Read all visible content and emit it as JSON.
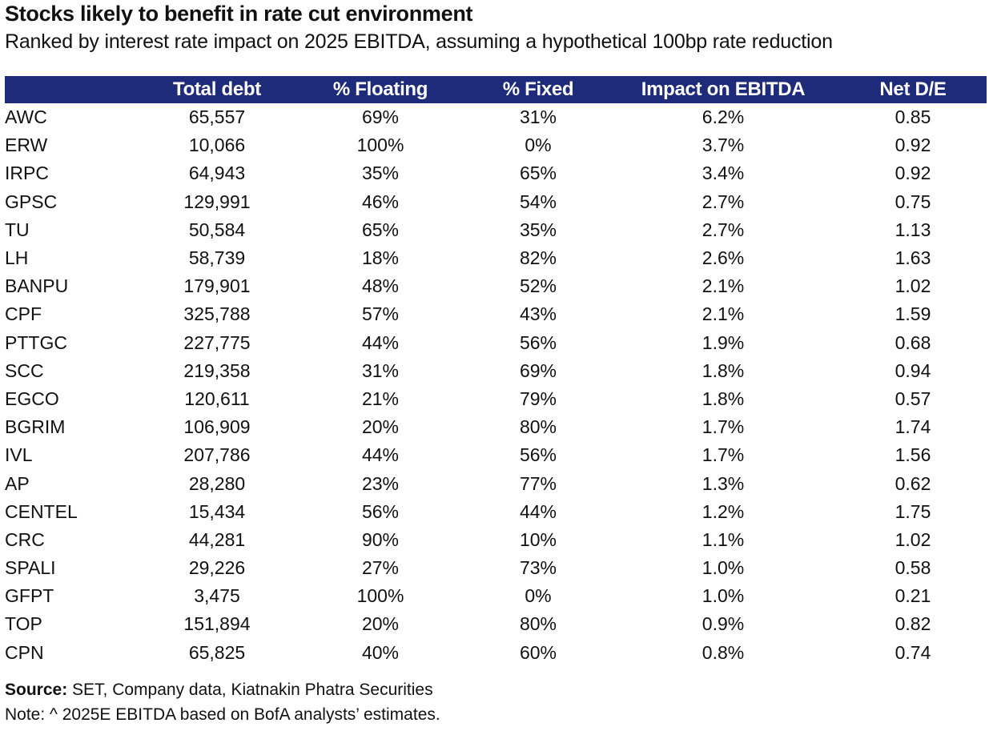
{
  "title": "Stocks likely to benefit in rate cut environment",
  "subtitle": "Ranked by interest rate impact on 2025 EBITDA, assuming a hypothetical 100bp rate reduction",
  "table": {
    "columns": [
      "",
      "Total debt",
      "% Floating",
      "% Fixed",
      "Impact on EBITDA",
      "Net D/E"
    ],
    "rows": [
      [
        "AWC",
        "65,557",
        "69%",
        "31%",
        "6.2%",
        "0.85"
      ],
      [
        "ERW",
        "10,066",
        "100%",
        "0%",
        "3.7%",
        "0.92"
      ],
      [
        "IRPC",
        "64,943",
        "35%",
        "65%",
        "3.4%",
        "0.92"
      ],
      [
        "GPSC",
        "129,991",
        "46%",
        "54%",
        "2.7%",
        "0.75"
      ],
      [
        "TU",
        "50,584",
        "65%",
        "35%",
        "2.7%",
        "1.13"
      ],
      [
        "LH",
        "58,739",
        "18%",
        "82%",
        "2.6%",
        "1.63"
      ],
      [
        "BANPU",
        "179,901",
        "48%",
        "52%",
        "2.1%",
        "1.02"
      ],
      [
        "CPF",
        "325,788",
        "57%",
        "43%",
        "2.1%",
        "1.59"
      ],
      [
        "PTTGC",
        "227,775",
        "44%",
        "56%",
        "1.9%",
        "0.68"
      ],
      [
        "SCC",
        "219,358",
        "31%",
        "69%",
        "1.8%",
        "0.94"
      ],
      [
        "EGCO",
        "120,611",
        "21%",
        "79%",
        "1.8%",
        "0.57"
      ],
      [
        "BGRIM",
        "106,909",
        "20%",
        "80%",
        "1.7%",
        "1.74"
      ],
      [
        "IVL",
        "207,786",
        "44%",
        "56%",
        "1.7%",
        "1.56"
      ],
      [
        "AP",
        "28,280",
        "23%",
        "77%",
        "1.3%",
        "0.62"
      ],
      [
        "CENTEL",
        "15,434",
        "56%",
        "44%",
        "1.2%",
        "1.75"
      ],
      [
        "CRC",
        "44,281",
        "90%",
        "10%",
        "1.1%",
        "1.02"
      ],
      [
        "SPALI",
        "29,226",
        "27%",
        "73%",
        "1.0%",
        "0.58"
      ],
      [
        "GFPT",
        "3,475",
        "100%",
        "0%",
        "1.0%",
        "0.21"
      ],
      [
        "TOP",
        "151,894",
        "20%",
        "80%",
        "0.9%",
        "0.82"
      ],
      [
        "CPN",
        "65,825",
        "40%",
        "60%",
        "0.8%",
        "0.74"
      ]
    ]
  },
  "source": {
    "label": "Source:",
    "text": " SET, Company data, Kiatnakin Phatra Securities"
  },
  "note": "Note: ^ 2025E EBITDA based on BofA analysts’ estimates.",
  "colors": {
    "header_bg": "#1e2a7a",
    "header_text": "#ffffff"
  }
}
